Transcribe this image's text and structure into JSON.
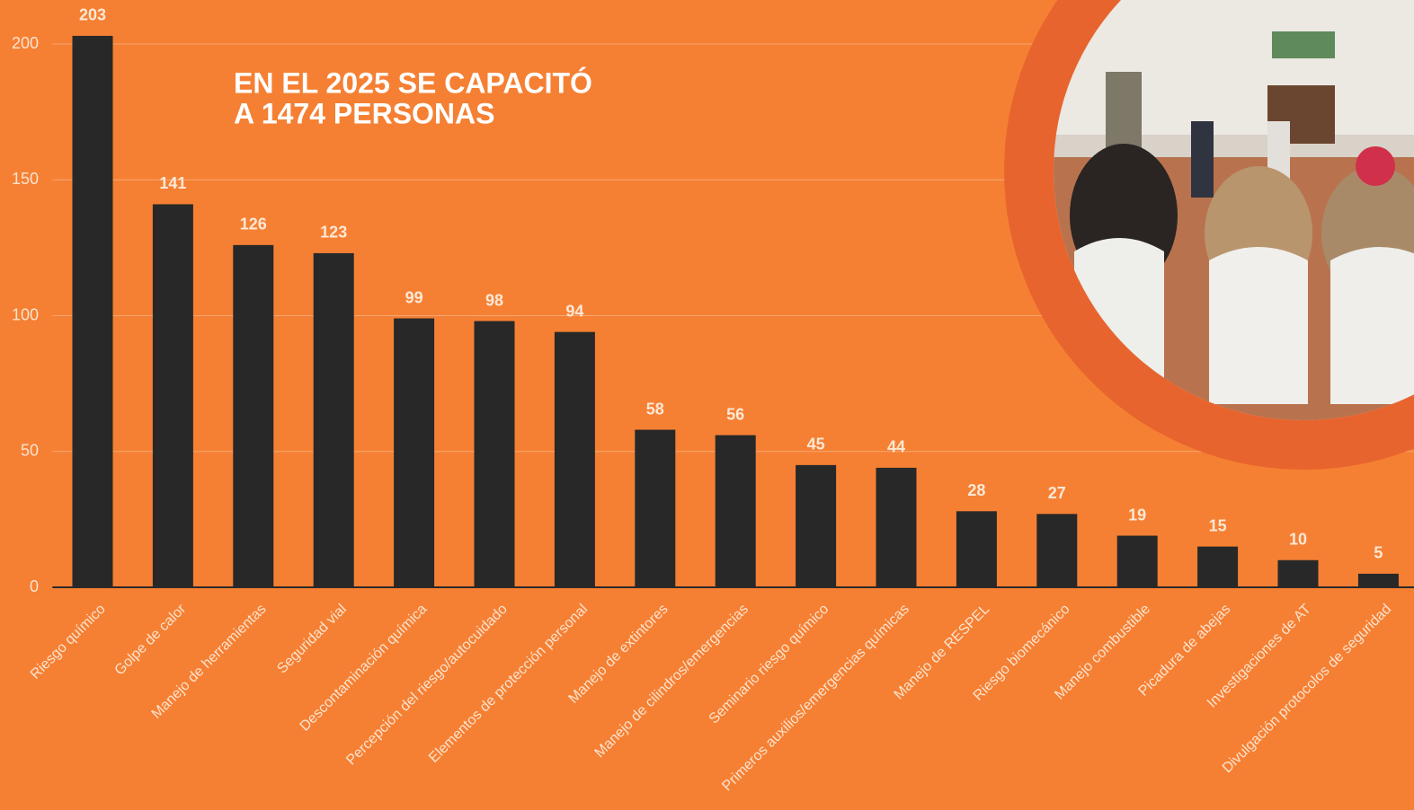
{
  "chart_data": {
    "type": "bar",
    "title": [
      "EN EL 2025 SE CAPACITÓ",
      "A 1474 PERSONAS"
    ],
    "categories": [
      "Riesgo químico",
      "Golpe de calor",
      "Manejo de herramientas",
      "Seguridad vial",
      "Descontaminación química",
      "Percepción del riesgo/autocuidado",
      "Elementos de protección personal",
      "Manejo de extintores",
      "Manejo de cilindros/emergencias",
      "Seminario riesgo químico",
      "Primeros auxilios/emergencias químicas",
      "Manejo de RESPEL",
      "Riesgo biomecánico",
      "Manejo combustible",
      "Picadura de abejas",
      "Investigaciones de AT",
      "Divulgación protocolos de seguridad"
    ],
    "values": [
      203,
      141,
      126,
      123,
      99,
      98,
      94,
      58,
      56,
      45,
      44,
      28,
      27,
      19,
      15,
      10,
      5
    ],
    "color": "#282828",
    "ylim": [
      0,
      210
    ],
    "yticks": [
      0,
      50,
      100,
      150,
      200
    ],
    "grid": true
  }
}
